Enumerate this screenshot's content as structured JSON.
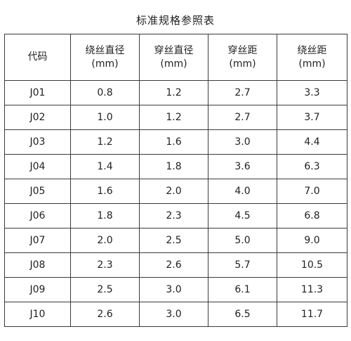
{
  "title": "标准规格参照表",
  "columns": [
    {
      "name": "代码",
      "unit": ""
    },
    {
      "name": "绕丝直径",
      "unit": "(mm)"
    },
    {
      "name": "穿丝直径",
      "unit": "(mm)"
    },
    {
      "name": "穿丝距",
      "unit": "(mm)"
    },
    {
      "name": "绕丝距",
      "unit": "(mm)"
    }
  ],
  "rows": [
    [
      "J01",
      "0.8",
      "1.2",
      "2.7",
      "3.3"
    ],
    [
      "J02",
      "1.0",
      "1.2",
      "2.7",
      "3.7"
    ],
    [
      "J03",
      "1.2",
      "1.6",
      "3.0",
      "4.4"
    ],
    [
      "J04",
      "1.4",
      "1.8",
      "3.6",
      "6.3"
    ],
    [
      "J05",
      "1.6",
      "2.0",
      "4.0",
      "7.0"
    ],
    [
      "J06",
      "1.8",
      "2.3",
      "4.5",
      "6.8"
    ],
    [
      "J07",
      "2.0",
      "2.5",
      "5.0",
      "9.0"
    ],
    [
      "J08",
      "2.3",
      "2.6",
      "5.7",
      "10.5"
    ],
    [
      "J09",
      "2.5",
      "3.0",
      "6.1",
      "11.3"
    ],
    [
      "J10",
      "2.6",
      "3.0",
      "6.5",
      "11.7"
    ]
  ]
}
